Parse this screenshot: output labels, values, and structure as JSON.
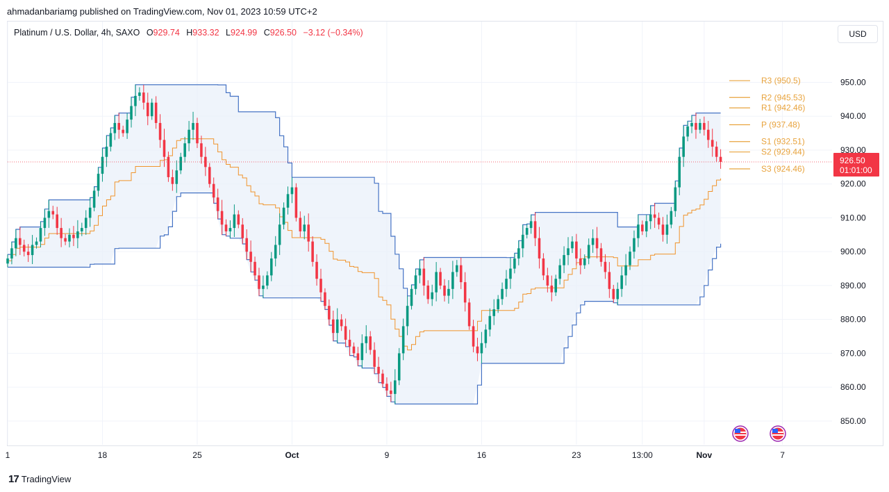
{
  "header": {
    "publisher_line": "ahmadanbariamg published on TradingView.com, Nov 01, 2023 10:59 UTC+2"
  },
  "legend": {
    "symbol": "Platinum / U.S. Dollar, 4h, SAXO",
    "o_label": "O",
    "o_value": "929.74",
    "h_label": "H",
    "h_value": "933.32",
    "l_label": "L",
    "l_value": "924.99",
    "c_label": "C",
    "c_value": "926.50",
    "change": "−3.12 (−0.34%)"
  },
  "currency_button": "USD",
  "footer": {
    "brand": "TradingView",
    "logo_mark": "17"
  },
  "colors": {
    "up": "#089981",
    "down": "#f23645",
    "channel": "#4472c4",
    "basis": "#f0932b",
    "pivot": "#e8a33d",
    "fill": "#e8f0fa"
  },
  "chart_data": {
    "type": "candlestick",
    "symbol": "Platinum / U.S. Dollar",
    "timeframe": "4h",
    "ylim": [
      843,
      962
    ],
    "y_ticks": [
      "950.00",
      "940.00",
      "930.00",
      "920.00",
      "910.00",
      "900.00",
      "890.00",
      "880.00",
      "870.00",
      "860.00",
      "850.00"
    ],
    "y_tick_values": [
      950,
      940,
      930,
      920,
      910,
      900,
      890,
      880,
      870,
      860,
      850
    ],
    "x_ticks": [
      {
        "label": "1",
        "bar": 0
      },
      {
        "label": "18",
        "bar": 23
      },
      {
        "label": "25",
        "bar": 46
      },
      {
        "label": "Oct",
        "bar": 69
      },
      {
        "label": "9",
        "bar": 92
      },
      {
        "label": "16",
        "bar": 115
      },
      {
        "label": "23",
        "bar": 138
      },
      {
        "label": "13:00",
        "bar": 154
      },
      {
        "label": "Nov",
        "bar": 169
      },
      {
        "label": "7",
        "bar": 188
      }
    ],
    "bars_total": 198,
    "close_series": [
      898,
      901,
      904,
      902,
      900,
      899,
      902,
      903,
      907,
      910,
      912,
      911,
      907,
      904,
      903,
      905,
      904,
      906,
      907,
      910,
      913,
      918,
      923,
      928,
      931,
      935,
      938,
      936,
      935,
      939,
      943,
      946,
      947,
      944,
      940,
      944,
      938,
      933,
      928,
      922,
      920,
      924,
      928,
      932,
      936,
      938,
      932,
      928,
      925,
      920,
      916,
      912,
      908,
      906,
      907,
      911,
      908,
      904,
      900,
      897,
      893,
      889,
      890,
      893,
      898,
      902,
      908,
      913,
      917,
      919,
      910,
      906,
      908,
      903,
      897,
      892,
      888,
      884,
      880,
      876,
      880,
      878,
      874,
      872,
      870,
      868,
      873,
      875,
      871,
      866,
      864,
      861,
      859,
      858,
      862,
      870,
      878,
      884,
      889,
      893,
      895,
      890,
      886,
      888,
      894,
      890,
      887,
      889,
      894,
      896,
      891,
      885,
      878,
      872,
      870,
      873,
      877,
      881,
      883,
      886,
      889,
      892,
      895,
      898,
      901,
      905,
      907,
      909,
      904,
      898,
      893,
      890,
      888,
      892,
      896,
      899,
      901,
      903,
      898,
      896,
      898,
      902,
      904,
      901,
      897,
      894,
      889,
      886,
      889,
      893,
      896,
      900,
      904,
      908,
      906,
      909,
      911,
      910,
      908,
      905,
      908,
      912,
      919,
      928,
      934,
      937,
      938,
      936,
      938,
      936,
      933,
      931,
      928,
      926.5
    ],
    "pivots": [
      {
        "label": "R3",
        "value": "950.5",
        "y": 950.5
      },
      {
        "label": "R2",
        "value": "945.53",
        "y": 945.53
      },
      {
        "label": "R1",
        "value": "942.46",
        "y": 942.46
      },
      {
        "label": "P",
        "value": "937.48",
        "y": 937.48
      },
      {
        "label": "S1",
        "value": "932.51",
        "y": 932.51
      },
      {
        "label": "S2",
        "value": "929.44",
        "y": 929.44
      },
      {
        "label": "S3",
        "value": "924.46",
        "y": 924.46
      }
    ],
    "last_price": {
      "price": "926.50",
      "countdown": "01:01:00",
      "value": 926.5
    },
    "channel_length": 20,
    "event_markers": [
      "us-flag-icon",
      "us-flag-icon"
    ]
  }
}
